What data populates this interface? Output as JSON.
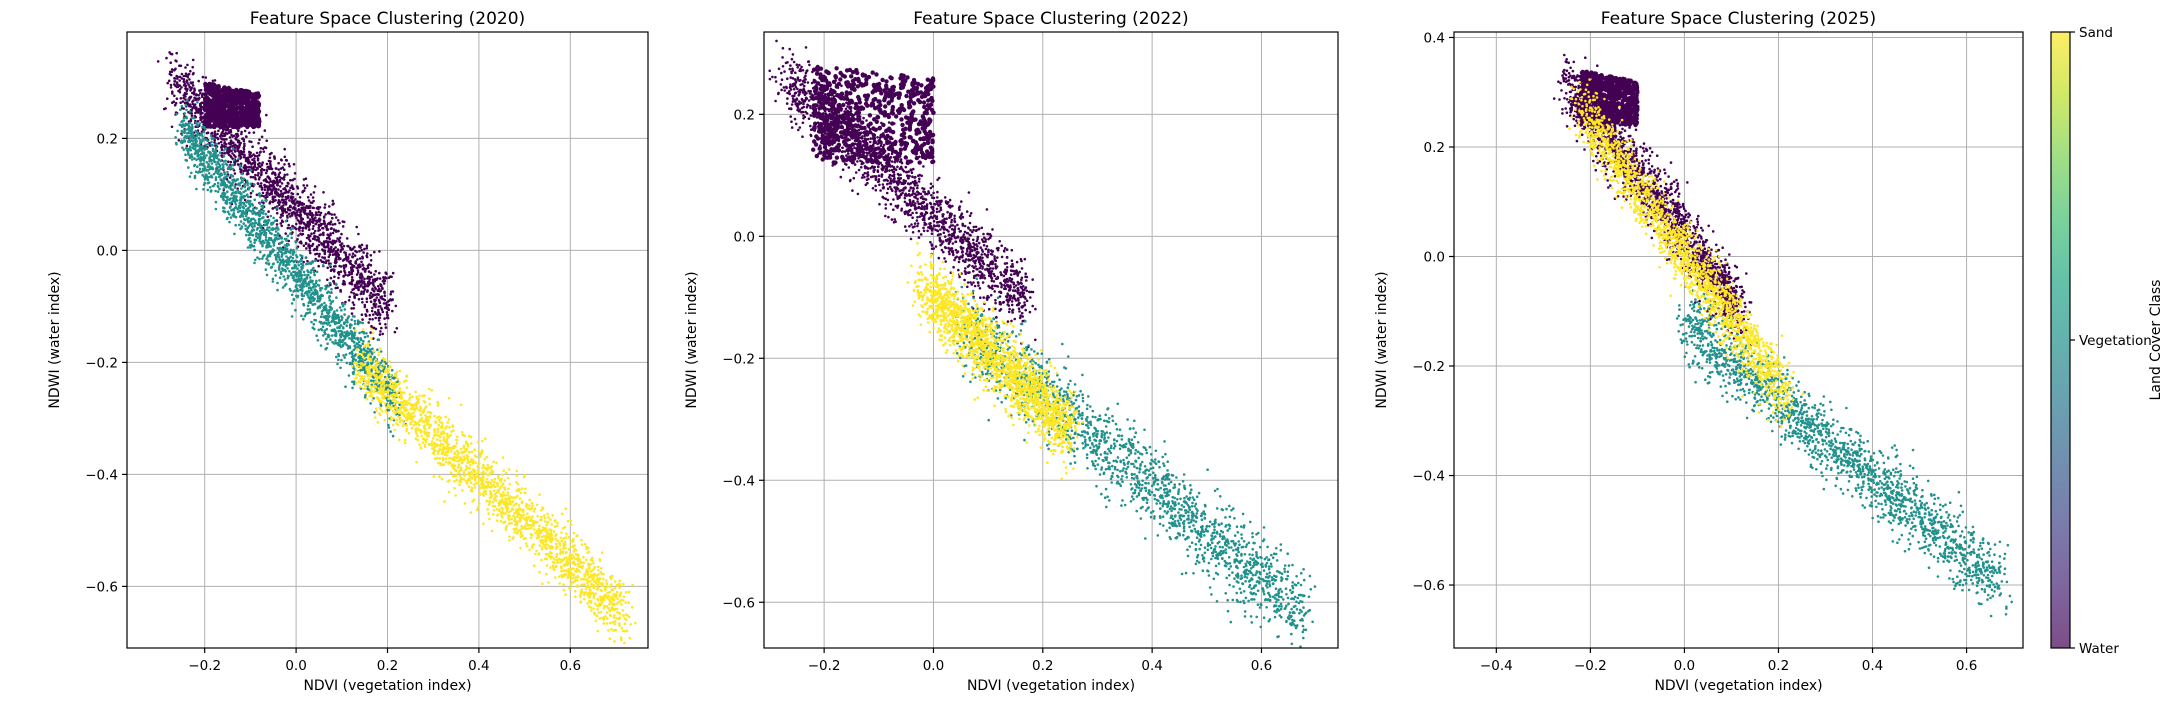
{
  "colorbar": {
    "label": "Land Cover Class",
    "ticks": [
      "Water",
      "Vegetation",
      "Sand"
    ],
    "colors": [
      "#440154",
      "#21918c",
      "#fde725"
    ]
  },
  "chart_data": [
    {
      "type": "scatter",
      "title": "Feature Space Clustering (2020)",
      "xlabel": "NDVI (vegetation index)",
      "ylabel": "NDWI (water index)",
      "xlim": [
        -0.37,
        0.77
      ],
      "ylim": [
        -0.71,
        0.39
      ],
      "xticks": [
        -0.2,
        0.0,
        0.2,
        0.4,
        0.6
      ],
      "xtick_labels": [
        "−0.2",
        "0.0",
        "0.2",
        "0.4",
        "0.6"
      ],
      "yticks": [
        -0.6,
        -0.4,
        -0.2,
        0.0,
        0.2
      ],
      "ytick_labels": [
        "−0.6",
        "−0.4",
        "−0.2",
        "0.0",
        "0.2"
      ],
      "grid": true,
      "clusters": [
        {
          "class": "Water",
          "dense_blob": {
            "x": [
              -0.2,
              -0.08
            ],
            "y": [
              0.22,
              0.3
            ]
          },
          "trail": {
            "x": [
              -0.27,
              0.2
            ],
            "y0": [
              0.28,
              -0.12
            ],
            "spread": 0.055,
            "offset": 0.02
          }
        },
        {
          "class": "Vegetation",
          "trail": {
            "x": [
              -0.25,
              0.22
            ],
            "y0": [
              0.23,
              -0.26
            ],
            "spread": 0.045,
            "offset": -0.01
          }
        },
        {
          "class": "Sand",
          "trail": {
            "x": [
              0.14,
              0.72
            ],
            "y0": [
              -0.2,
              -0.65
            ],
            "spread": 0.05,
            "offset": 0.0
          }
        }
      ]
    },
    {
      "type": "scatter",
      "title": "Feature Space Clustering (2022)",
      "xlabel": "NDVI (vegetation index)",
      "ylabel": "NDWI (water index)",
      "xlim": [
        -0.31,
        0.74
      ],
      "ylim": [
        -0.675,
        0.335
      ],
      "xticks": [
        -0.2,
        0.0,
        0.2,
        0.4,
        0.6
      ],
      "xtick_labels": [
        "−0.2",
        "0.0",
        "0.2",
        "0.4",
        "0.6"
      ],
      "yticks": [
        -0.6,
        -0.4,
        -0.2,
        0.0,
        0.2
      ],
      "ytick_labels": [
        "−0.6",
        "−0.4",
        "−0.2",
        "0.0",
        "0.2"
      ],
      "grid": true,
      "clusters": [
        {
          "class": "Water",
          "dense_blob": {
            "x": [
              -0.22,
              0.0
            ],
            "y": [
              0.12,
              0.28
            ]
          },
          "trail": {
            "x": [
              -0.27,
              0.17
            ],
            "y0": [
              0.25,
              -0.12
            ],
            "spread": 0.05,
            "offset": 0.01
          }
        },
        {
          "class": "Vegetation",
          "trail": {
            "x": [
              0.05,
              0.68
            ],
            "y0": [
              -0.15,
              -0.62
            ],
            "spread": 0.06,
            "offset": 0.0
          }
        },
        {
          "class": "Sand",
          "trail": {
            "x": [
              -0.02,
              0.25
            ],
            "y0": [
              -0.06,
              -0.3
            ],
            "spread": 0.05,
            "offset": -0.02
          }
        }
      ]
    },
    {
      "type": "scatter",
      "title": "Feature Space Clustering (2025)",
      "xlabel": "NDVI (vegetation index)",
      "ylabel": "NDWI (water index)",
      "xlim": [
        -0.49,
        0.72
      ],
      "ylim": [
        -0.715,
        0.41
      ],
      "xticks": [
        -0.4,
        -0.2,
        0.0,
        0.2,
        0.4,
        0.6
      ],
      "xtick_labels": [
        "−0.4",
        "−0.2",
        "0.0",
        "0.2",
        "0.4",
        "0.6"
      ],
      "yticks": [
        -0.6,
        -0.4,
        -0.2,
        0.0,
        0.2,
        0.4
      ],
      "ytick_labels": [
        "−0.6",
        "−0.4",
        "−0.2",
        "0.0",
        "0.2",
        "0.4"
      ],
      "grid": true,
      "clusters": [
        {
          "class": "Water",
          "dense_blob": {
            "x": [
              -0.22,
              -0.1
            ],
            "y": [
              0.24,
              0.34
            ]
          },
          "trail": {
            "x": [
              -0.25,
              0.12
            ],
            "y0": [
              0.3,
              -0.12
            ],
            "spread": 0.05,
            "offset": 0.02
          }
        },
        {
          "class": "Vegetation",
          "trail": {
            "x": [
              0.0,
              0.67
            ],
            "y0": [
              -0.12,
              -0.6
            ],
            "spread": 0.055,
            "offset": 0.0
          }
        },
        {
          "class": "Sand",
          "trail": {
            "x": [
              -0.22,
              0.22
            ],
            "y0": [
              0.28,
              -0.25
            ],
            "spread": 0.05,
            "offset": -0.01
          }
        }
      ]
    }
  ]
}
